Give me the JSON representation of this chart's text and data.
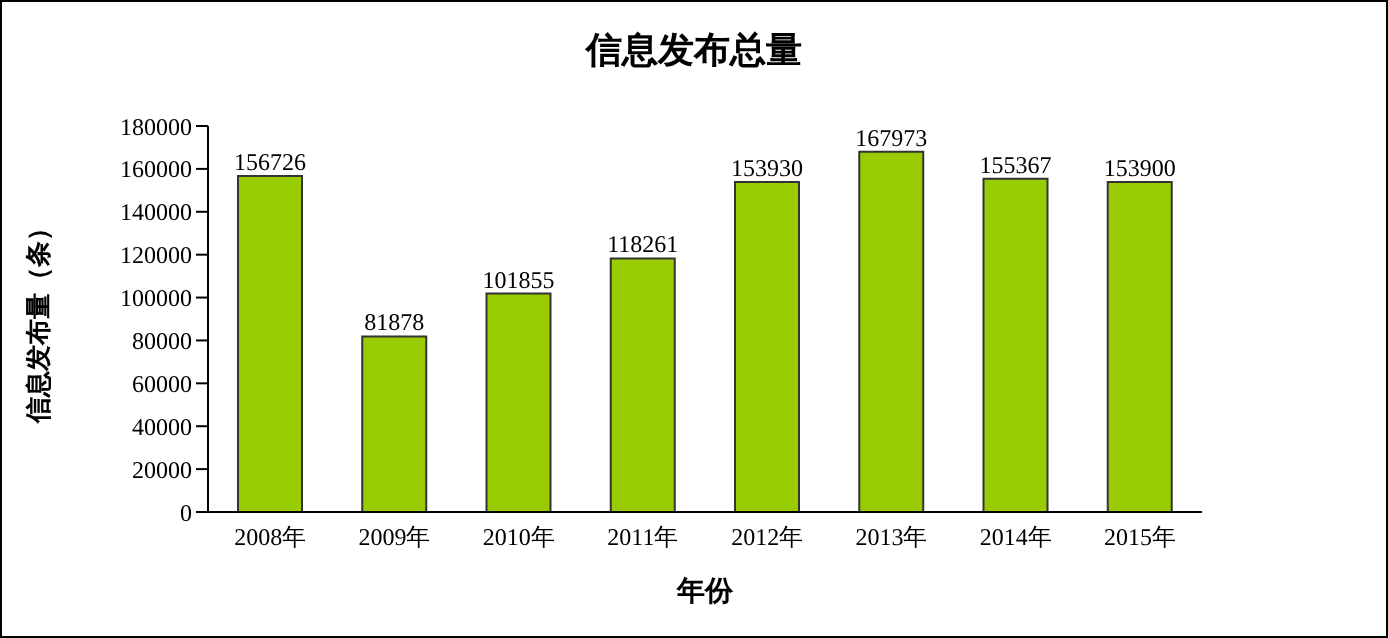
{
  "chart_data": {
    "type": "bar",
    "title": "信息发布总量",
    "xlabel": "年份",
    "ylabel": "信息发布量（条）",
    "categories": [
      "2008年",
      "2009年",
      "2010年",
      "2011年",
      "2012年",
      "2013年",
      "2014年",
      "2015年"
    ],
    "values": [
      156726,
      81878,
      101855,
      118261,
      153930,
      167973,
      155367,
      153900
    ],
    "color": "#99cc00",
    "ylim": [
      0,
      180000
    ],
    "yticks": [
      0,
      20000,
      40000,
      60000,
      80000,
      100000,
      120000,
      140000,
      160000,
      180000
    ],
    "grid": false,
    "legend": false,
    "data_labels": true
  }
}
